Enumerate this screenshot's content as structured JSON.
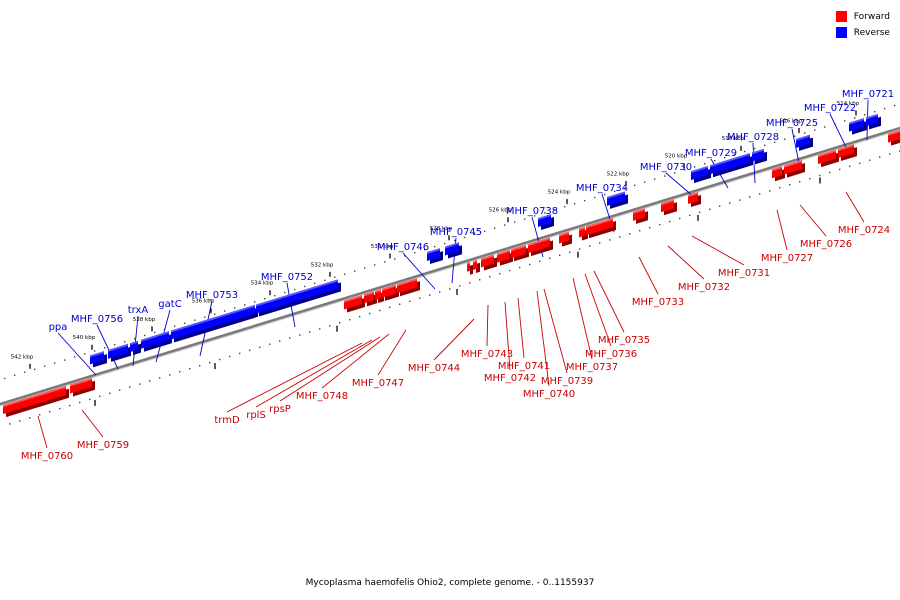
{
  "legend": {
    "forward": {
      "label": "Forward",
      "color": "#ff0000"
    },
    "reverse": {
      "label": "Reverse",
      "color": "#0000ff"
    }
  },
  "caption": "Mycoplasma haemofelis Ohio2, complete genome. - 0..1155937",
  "colors": {
    "forward": "#ff0000",
    "reverse": "#0000ff",
    "backbone": "#7a7a7a"
  },
  "ticks": {
    "top": [
      "542 kbp",
      "540 kbp",
      "538 kbp",
      "536 kbp",
      "534 kbp",
      "532 kbp",
      "530 kbp",
      "528 kbp",
      "526 kbp",
      "524 kbp",
      "522 kbp",
      "520 kbp",
      "518 kbp",
      "516 kbp",
      "514 kbp"
    ]
  },
  "reverse_genes": [
    "MHF_0721",
    "MHF_0722",
    "MHF_0725",
    "MHF_0728",
    "MHF_0729",
    "MHF_0730",
    "MHF_0734",
    "MHF_0738",
    "MHF_0745",
    "MHF_0746",
    "MHF_0752",
    "MHF_0753",
    "gatC",
    "trxA",
    "MHF_0756",
    "ppa"
  ],
  "forward_genes": [
    "MHF_0724",
    "MHF_0726",
    "MHF_0727",
    "MHF_0731",
    "MHF_0732",
    "MHF_0733",
    "MHF_0735",
    "MHF_0736",
    "MHF_0737",
    "MHF_0739",
    "MHF_0740",
    "MHF_0741",
    "MHF_0742",
    "MHF_0743",
    "MHF_0744",
    "MHF_0747",
    "MHF_0748",
    "rpsP",
    "rplS",
    "trmD",
    "MHF_0759",
    "MHF_0760"
  ]
}
